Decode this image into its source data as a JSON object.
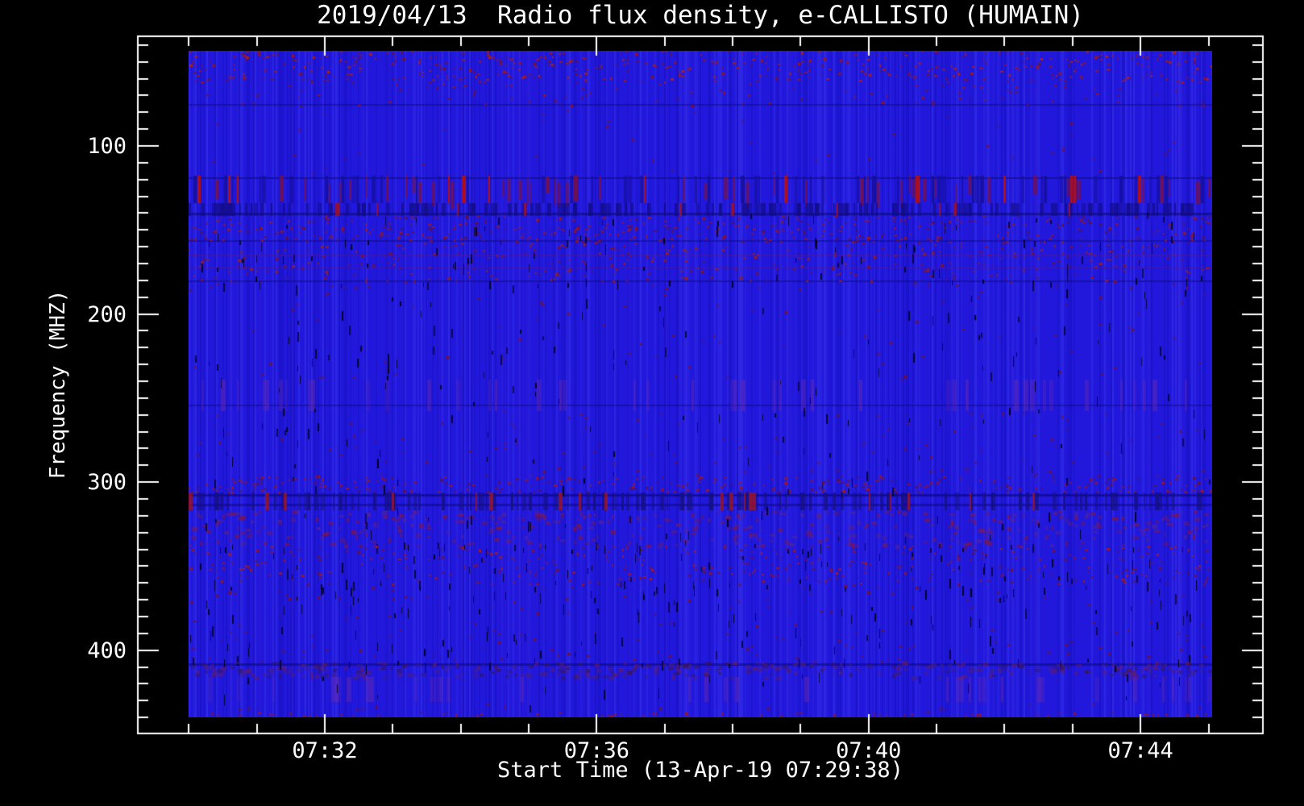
{
  "chart_data": {
    "type": "heatmap",
    "subtype": "radio-spectrogram",
    "title": "2019/04/13  Radio flux density, e-CALLISTO (HUMAIN)",
    "xlabel": "Start Time (13-Apr-19 07:29:38)",
    "ylabel": "Frequency (MHZ)",
    "legend": "none",
    "grid": "off",
    "x_axis": {
      "unit": "time (hh:mm)",
      "axis_start_minutes": 29.25,
      "axis_end_minutes": 45.8,
      "major_ticks": [
        {
          "minutes": 32,
          "label": "07:32"
        },
        {
          "minutes": 36,
          "label": "07:36"
        },
        {
          "minutes": 40,
          "label": "07:40"
        },
        {
          "minutes": 44,
          "label": "07:44"
        }
      ],
      "minor_tick_start_minutes": 30,
      "minor_tick_end_minutes": 45,
      "minor_tick_step_minutes": 1,
      "data_start_minutes": 30.0,
      "data_end_minutes": 45.05
    },
    "y_axis": {
      "unit": "MHz",
      "orientation": "inverted (frequency increases downward)",
      "axis_top_mhz": 34.8,
      "axis_bottom_mhz": 449.5,
      "major_ticks": [
        100,
        200,
        300,
        400
      ],
      "minor_tick_start_mhz": 40,
      "minor_tick_end_mhz": 440,
      "minor_tick_step_mhz": 10,
      "data_top_mhz": 43.5,
      "data_bottom_mhz": 440.0
    },
    "texture": {
      "base": "#2118dc",
      "light_streak": "rgba(100,100,255,",
      "dark_streak": "rgba(8,4,130,",
      "purple": "#6e2ba8",
      "dash": "#04021c"
    },
    "rows": [
      {
        "mhz": 75,
        "height": 2,
        "color": "rgba(10,8,110,0.45)"
      },
      {
        "mhz": 119,
        "height": 2,
        "color": "rgba(10,8,110,0.50)"
      },
      {
        "mhz": 140,
        "height": 3,
        "color": "rgba(8,6,95,0.50)"
      },
      {
        "mhz": 156,
        "height": 2,
        "color": "rgba(10,8,110,0.45)"
      },
      {
        "mhz": 165,
        "height": 2,
        "color": "rgba(140,20,60,0.25)"
      },
      {
        "mhz": 172,
        "height": 2,
        "color": "rgba(140,20,60,0.22)"
      },
      {
        "mhz": 180,
        "height": 2,
        "color": "rgba(10,8,110,0.45)"
      },
      {
        "mhz": 254,
        "height": 2,
        "color": "rgba(10,8,110,0.40)"
      },
      {
        "mhz": 307,
        "height": 3,
        "color": "rgba(8,6,95,0.55)"
      },
      {
        "mhz": 313,
        "height": 3,
        "color": "rgba(8,6,95,0.45)"
      },
      {
        "mhz": 408,
        "height": 3,
        "color": "rgba(8,6,95,0.50)"
      }
    ],
    "bands": [
      {
        "mhz": [
          43.5,
          62
        ],
        "style": "speckle",
        "density": 0.09,
        "palette": [
          "#8c1430",
          "#a0181c",
          "#701238",
          "#b02018"
        ],
        "note": "broadband speckle at top of band"
      },
      {
        "mhz": [
          62,
          76
        ],
        "style": "speckle",
        "density": 0.025,
        "palette": [
          "#70103a",
          "#8c1430"
        ]
      },
      {
        "mhz": [
          76,
          118
        ],
        "style": "sparse",
        "density": 0.004,
        "palette": [
          "#70103a"
        ]
      },
      {
        "mhz": [
          118,
          134
        ],
        "style": "bars",
        "dark": 0.16,
        "maroon": 0.2,
        "red": 0.035,
        "palette": {
          "dark": "#150f9a",
          "maroon": "#7c1040",
          "red": "#bb0f08"
        },
        "note": "strong RFI band"
      },
      {
        "mhz": [
          134,
          142
        ],
        "style": "barcode",
        "dark": 0.45,
        "red": 0.025,
        "palette": {
          "dark": "#120c85",
          "red": "#a01020"
        }
      },
      {
        "mhz": [
          142,
          157
        ],
        "style": "speckle",
        "density": 0.1,
        "dash": 0.05,
        "palette": [
          "#8c1430",
          "#a01818",
          "#601040"
        ]
      },
      {
        "mhz": [
          157,
          181
        ],
        "style": "speckle",
        "density": 0.05,
        "dash": 0.05,
        "palette": [
          "#7a1238",
          "#942020"
        ]
      },
      {
        "mhz": [
          181,
          239
        ],
        "style": "sparse",
        "density": 0.006,
        "dash": 0.03,
        "palette": [
          "#70103a"
        ]
      },
      {
        "mhz": [
          239,
          258
        ],
        "style": "purple-streaks",
        "density": 0.16,
        "dash": 0.02
      },
      {
        "mhz": [
          258,
          296
        ],
        "style": "sparse",
        "density": 0.01,
        "dash": 0.025,
        "palette": [
          "#6a1245"
        ]
      },
      {
        "mhz": [
          296,
          306
        ],
        "style": "speckle",
        "density": 0.11,
        "dash": 0.03,
        "palette": [
          "#8c1430",
          "#a51515",
          "#5c1050"
        ]
      },
      {
        "mhz": [
          306,
          317
        ],
        "style": "barcode",
        "dark": 0.32,
        "red": 0.05,
        "palette": {
          "dark": "#151080",
          "red": "#971525"
        },
        "note": "second strong RFI band"
      },
      {
        "mhz": [
          317,
          338
        ],
        "style": "mottle",
        "density": 0.13,
        "dash": 0.04,
        "palette": [
          "#5a2490",
          "#7c1a55",
          "#8c1430"
        ]
      },
      {
        "mhz": [
          338,
          361
        ],
        "style": "speckle",
        "density": 0.06,
        "dash": 0.08,
        "palette": [
          "#8c1430",
          "#ad1a10",
          "#64124a"
        ]
      },
      {
        "mhz": [
          361,
          407
        ],
        "style": "sparse",
        "density": 0.012,
        "dash": 0.06,
        "palette": [
          "#70103a"
        ]
      },
      {
        "mhz": [
          407,
          416
        ],
        "style": "mottle",
        "density": 0.3,
        "dash": 0.02,
        "palette": [
          "#4c1e7a",
          "#6a1a60",
          "#3a1650"
        ]
      },
      {
        "mhz": [
          416,
          431
        ],
        "style": "purple-streaks",
        "density": 0.12,
        "dash": 0.02
      },
      {
        "mhz": [
          431,
          437
        ],
        "style": "sparse",
        "density": 0.01,
        "palette": [
          "#70103a"
        ]
      },
      {
        "mhz": [
          437,
          440
        ],
        "style": "speckle",
        "density": 0.09,
        "palette": [
          "#8c1430",
          "#a51515"
        ]
      }
    ],
    "frame_color": "#ffffff",
    "background_color": "#000000"
  }
}
